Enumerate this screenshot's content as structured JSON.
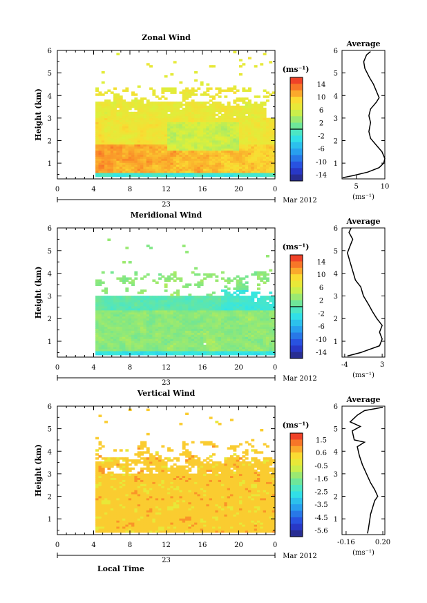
{
  "chart_data": [
    {
      "type": "heatmap",
      "title": "Zonal Wind",
      "ylabel": "Height (km)",
      "x_ticks": [
        "0",
        "4",
        "8",
        "12",
        "16",
        "20",
        "0"
      ],
      "x_date_label": "23",
      "x_month_label": "Mar 2012",
      "y_ticks": [
        "1",
        "2",
        "3",
        "4",
        "5",
        "6"
      ],
      "xlim": [
        0,
        24
      ],
      "ylim": [
        0.3,
        6
      ],
      "data_extent": {
        "x": [
          4.2,
          24
        ],
        "y": [
          0.4,
          5.9
        ]
      },
      "colorbar_unit": "(ms⁻¹)",
      "colorbar_ticks": [
        "-14",
        "-10",
        "-6",
        "-2",
        "2",
        "6",
        "10",
        "14"
      ],
      "colorbar_range": [
        -16,
        16
      ],
      "average": {
        "title": "Average",
        "unit": "(ms⁻¹)",
        "x_ticks": [
          "5",
          "10"
        ],
        "xlim": [
          2.5,
          10
        ],
        "y_ticks": [
          "1",
          "2",
          "3",
          "4",
          "5",
          "6"
        ],
        "points": [
          [
            2.6,
            0.35
          ],
          [
            4.5,
            0.45
          ],
          [
            7,
            0.6
          ],
          [
            9,
            0.8
          ],
          [
            9.8,
            1
          ],
          [
            10,
            1.2
          ],
          [
            9.5,
            1.5
          ],
          [
            8.5,
            1.8
          ],
          [
            7.5,
            2.1
          ],
          [
            7.2,
            2.4
          ],
          [
            7.5,
            2.8
          ],
          [
            7.2,
            3.1
          ],
          [
            7.5,
            3.4
          ],
          [
            8.5,
            3.7
          ],
          [
            9,
            3.9
          ],
          [
            8.5,
            4.2
          ],
          [
            8,
            4.5
          ],
          [
            7.3,
            4.8
          ],
          [
            6.5,
            5.2
          ],
          [
            6.3,
            5.5
          ],
          [
            6.8,
            5.8
          ],
          [
            7.5,
            5.95
          ]
        ]
      }
    },
    {
      "type": "heatmap",
      "title": "Meridional Wind",
      "ylabel": "Height (km)",
      "x_ticks": [
        "0",
        "4",
        "8",
        "12",
        "16",
        "20",
        "0"
      ],
      "x_date_label": "23",
      "x_month_label": "Mar 2012",
      "y_ticks": [
        "1",
        "2",
        "3",
        "4",
        "5",
        "6"
      ],
      "xlim": [
        0,
        24
      ],
      "ylim": [
        0.3,
        6
      ],
      "data_extent": {
        "x": [
          4.2,
          24
        ],
        "y": [
          0.4,
          5.5
        ]
      },
      "colorbar_unit": "(ms⁻¹)",
      "colorbar_ticks": [
        "-14",
        "-10",
        "-6",
        "-2",
        "2",
        "6",
        "10",
        "14"
      ],
      "colorbar_range": [
        -16,
        16
      ],
      "average": {
        "title": "Average",
        "unit": "(ms⁻¹)",
        "x_ticks": [
          "-4",
          "3"
        ],
        "xlim": [
          -4.5,
          3.5
        ],
        "y_ticks": [
          "1",
          "2",
          "3",
          "4",
          "5",
          "6"
        ],
        "points": [
          [
            -3.5,
            0.35
          ],
          [
            -1,
            0.5
          ],
          [
            2.5,
            0.8
          ],
          [
            3,
            1.1
          ],
          [
            2.5,
            1.4
          ],
          [
            3,
            1.7
          ],
          [
            2,
            2
          ],
          [
            1.2,
            2.3
          ],
          [
            0.5,
            2.6
          ],
          [
            -0.5,
            3
          ],
          [
            -1,
            3.4
          ],
          [
            -2,
            3.7
          ],
          [
            -2.5,
            4.1
          ],
          [
            -3,
            4.5
          ],
          [
            -3.5,
            4.9
          ],
          [
            -3,
            5.2
          ],
          [
            -2.5,
            5.5
          ],
          [
            -3.2,
            5.8
          ],
          [
            -2.8,
            6
          ]
        ]
      }
    },
    {
      "type": "heatmap",
      "title": "Vertical Wind",
      "ylabel": "Height (km)",
      "xlabel": "Local Time",
      "x_ticks": [
        "0",
        "4",
        "8",
        "12",
        "16",
        "20",
        "0"
      ],
      "x_date_label": "23",
      "x_month_label": "Mar 2012",
      "y_ticks": [
        "1",
        "2",
        "3",
        "4",
        "5",
        "6"
      ],
      "xlim": [
        0,
        24
      ],
      "ylim": [
        0.3,
        6
      ],
      "data_extent": {
        "x": [
          4.2,
          24
        ],
        "y": [
          0.4,
          5.8
        ]
      },
      "colorbar_unit": "(ms⁻¹)",
      "colorbar_ticks": [
        "1.5",
        "0.6",
        "-0.5",
        "-1.6",
        "-2.5",
        "-3.5",
        "-4.5",
        "-5.6"
      ],
      "colorbar_range": [
        -6,
        2
      ],
      "average": {
        "title": "Average",
        "unit": "(ms⁻¹)",
        "x_ticks": [
          "-0.16",
          "0.20"
        ],
        "xlim": [
          -0.2,
          0.22
        ],
        "y_ticks": [
          "1",
          "2",
          "3",
          "4",
          "5",
          "6"
        ],
        "points": [
          [
            0.05,
            0.35
          ],
          [
            0.06,
            0.6
          ],
          [
            0.07,
            0.9
          ],
          [
            0.08,
            1.2
          ],
          [
            0.1,
            1.5
          ],
          [
            0.12,
            1.8
          ],
          [
            0.15,
            2
          ],
          [
            0.12,
            2.3
          ],
          [
            0.08,
            2.6
          ],
          [
            0.04,
            3
          ],
          [
            0,
            3.4
          ],
          [
            -0.03,
            3.8
          ],
          [
            -0.05,
            4.2
          ],
          [
            0.02,
            4.4
          ],
          [
            -0.08,
            4.5
          ],
          [
            -0.1,
            4.9
          ],
          [
            -0.02,
            5.1
          ],
          [
            -0.12,
            5.3
          ],
          [
            -0.05,
            5.6
          ],
          [
            0.02,
            5.8
          ],
          [
            0.2,
            5.95
          ]
        ]
      }
    }
  ]
}
